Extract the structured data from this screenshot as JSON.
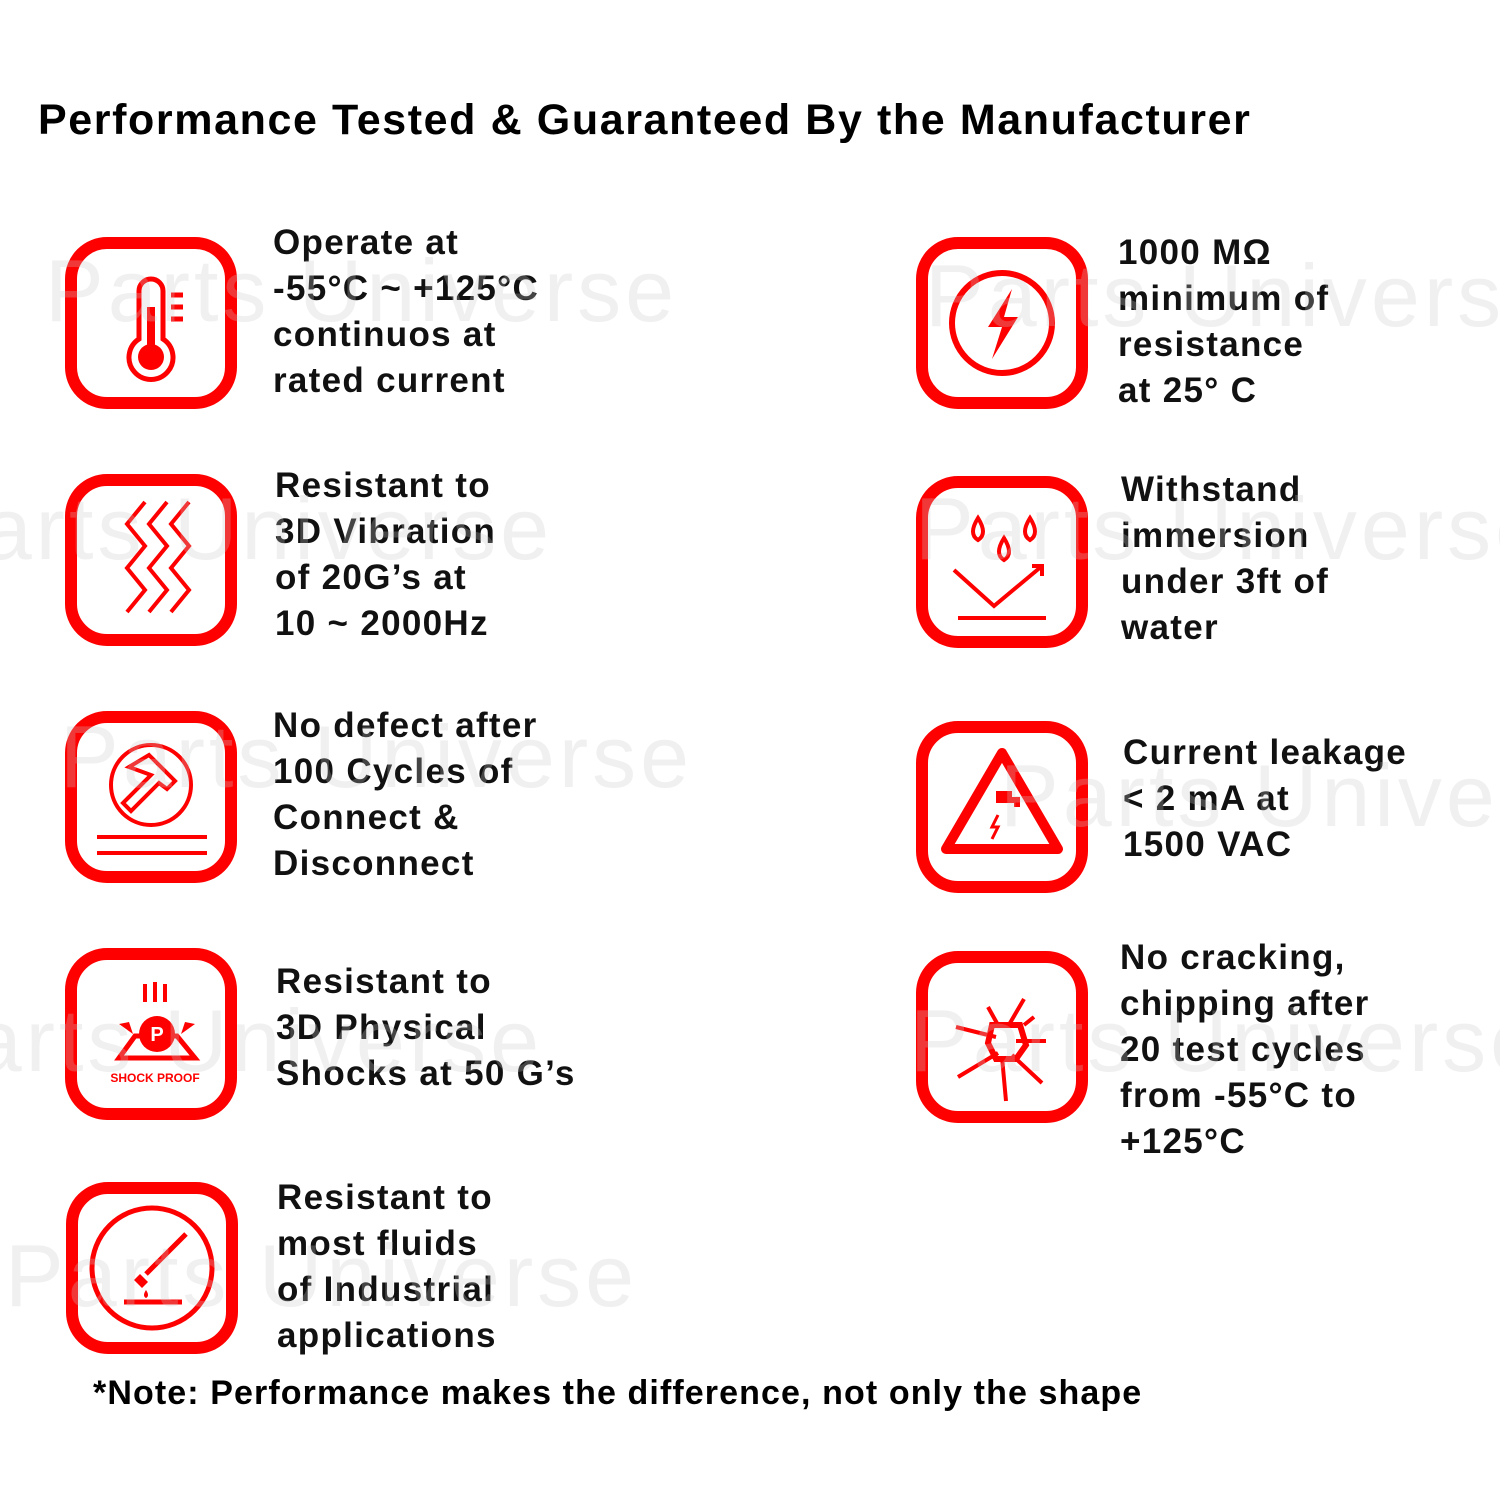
{
  "title": "Performance Tested & Guaranteed By the Manufacturer",
  "accent_color": "#ff0000",
  "watermark": "Parts Universe",
  "features_left": [
    {
      "icon": "thermometer-icon",
      "lines": [
        "Operate at",
        "-55°C ~ +125°C",
        "continuos at",
        "rated current"
      ]
    },
    {
      "icon": "vibration-icon",
      "lines": [
        "Resistant to",
        "3D Vibration",
        "of 20G’s at",
        "10 ~ 2000Hz"
      ]
    },
    {
      "icon": "hammer-icon",
      "lines": [
        "No defect after",
        "100 Cycles of",
        "Connect &",
        "Disconnect"
      ]
    },
    {
      "icon": "shock-proof-icon",
      "icon_label": "SHOCK PROOF",
      "icon_letter": "P",
      "lines": [
        "Resistant to",
        "3D Physical",
        "Shocks at 50 G’s"
      ]
    },
    {
      "icon": "fluid-drop-icon",
      "lines": [
        "Resistant to",
        "most fluids",
        "of Industrial",
        "applications"
      ]
    }
  ],
  "features_right": [
    {
      "icon": "lightning-icon",
      "lines": [
        "1000 MΩ",
        "minimum of",
        "resistance",
        "at 25° C"
      ]
    },
    {
      "icon": "water-drops-icon",
      "lines": [
        "Withstand",
        "immersion",
        "under 3ft of",
        "water"
      ]
    },
    {
      "icon": "electric-warning-icon",
      "lines": [
        "Current leakage",
        "< 2 mA at",
        "1500 VAC"
      ]
    },
    {
      "icon": "crack-icon",
      "lines": [
        "No cracking,",
        "chipping after",
        "20 test cycles",
        "from -55°C to",
        "+125°C"
      ]
    }
  ],
  "note": "*Note: Performance makes the difference, not only the shape"
}
